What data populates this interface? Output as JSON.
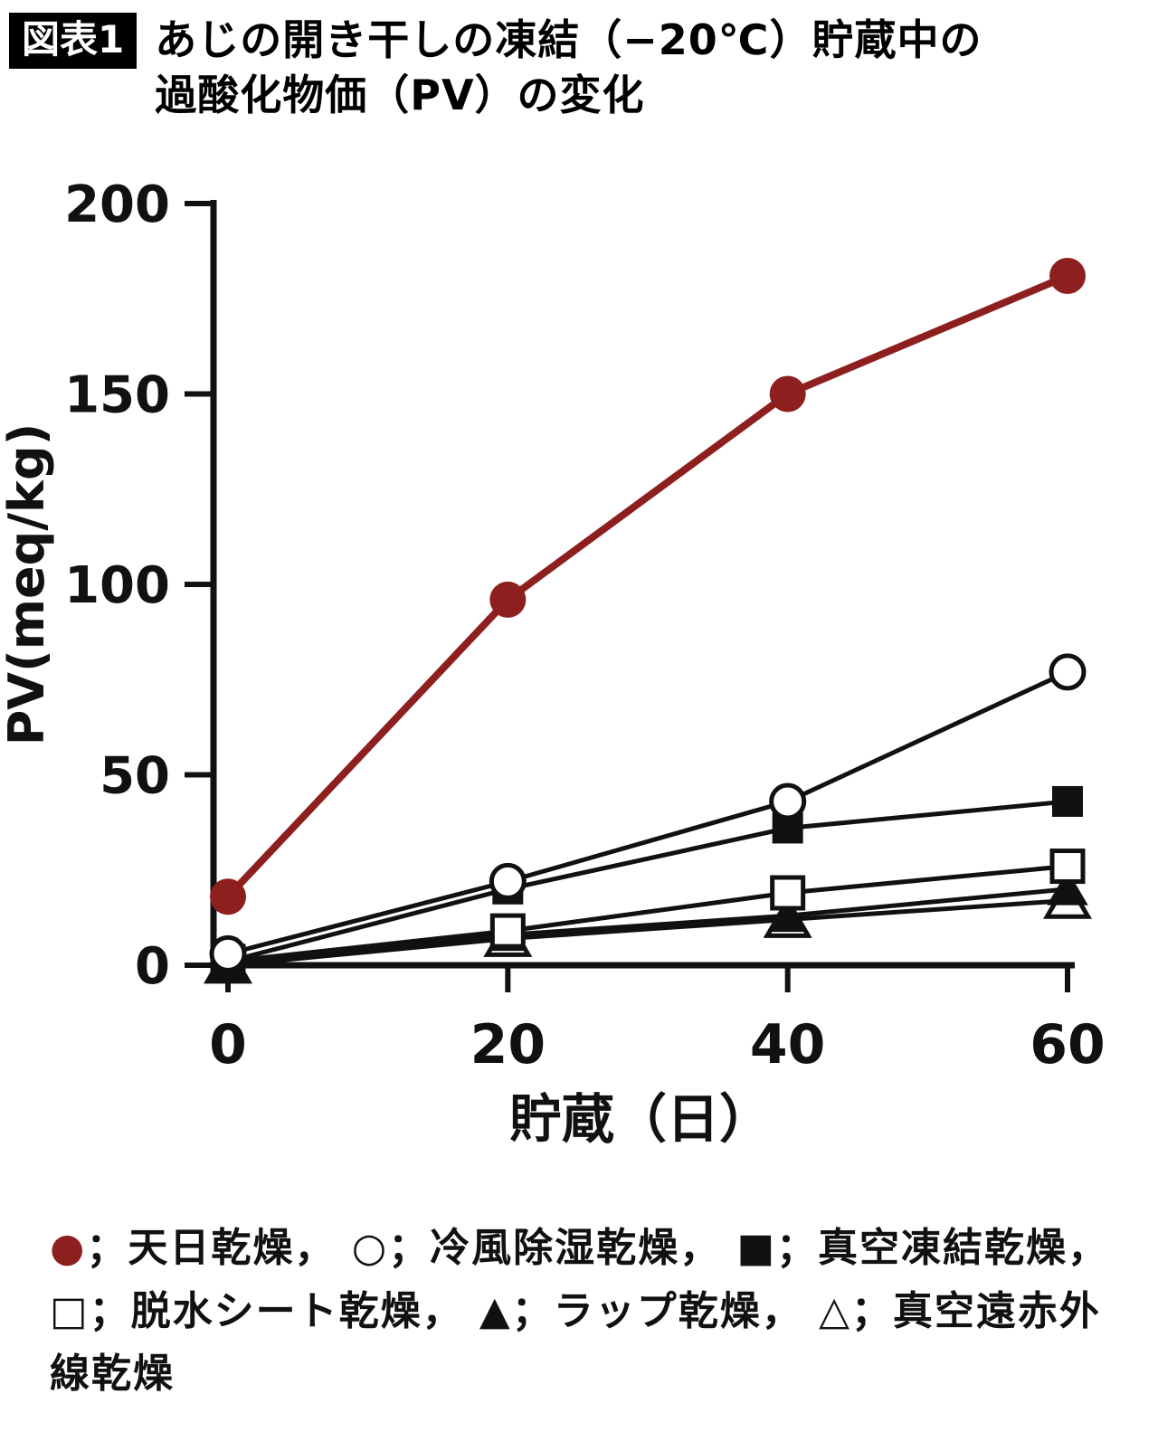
{
  "figure": {
    "badge": "図表1",
    "title_lines": [
      "あじの開き干しの凍結（−20℃）貯蔵中の",
      "過酸化物価（PV）の変化"
    ]
  },
  "chart_data": {
    "type": "line",
    "x": [
      0,
      20,
      40,
      60
    ],
    "xticks": [
      0,
      20,
      40,
      60
    ],
    "yticks": [
      0,
      50,
      100,
      150,
      200
    ],
    "xlim": [
      0,
      60
    ],
    "ylim": [
      0,
      200
    ],
    "xlabel": "貯蔵（日）",
    "ylabel": "PV(meq/kg)",
    "grid": false,
    "legend_position": "below",
    "axis_color": "#111111",
    "series": [
      {
        "key": "sun-drying",
        "name": "天日乾燥",
        "marker": "filled-circle",
        "glyph": "●",
        "color": "#8e1f1f",
        "values": [
          18,
          96,
          150,
          181
        ]
      },
      {
        "key": "cold-air-dehumidifying-drying",
        "name": "冷風除湿乾燥",
        "marker": "open-circle",
        "glyph": "○",
        "color": "#111111",
        "values": [
          3,
          22,
          43,
          77
        ]
      },
      {
        "key": "vacuum-freeze-drying",
        "name": "真空凍結乾燥",
        "marker": "filled-square",
        "glyph": "■",
        "color": "#111111",
        "values": [
          1,
          20,
          36,
          43
        ]
      },
      {
        "key": "dehydration-sheet-drying",
        "name": "脱水シート乾燥",
        "marker": "open-square",
        "glyph": "□",
        "color": "#111111",
        "values": [
          1,
          9,
          19,
          26
        ]
      },
      {
        "key": "wrap-drying",
        "name": "ラップ乾燥",
        "marker": "filled-triangle",
        "glyph": "▲",
        "color": "#111111",
        "values": [
          0,
          8,
          13,
          20
        ]
      },
      {
        "key": "vacuum-far-infrared-drying",
        "name": "真空遠赤外線乾燥",
        "marker": "open-triangle",
        "glyph": "△",
        "color": "#111111",
        "values": [
          0,
          7,
          12,
          17
        ]
      }
    ]
  },
  "legend": {
    "separator": "；",
    "delimiter": "，"
  }
}
